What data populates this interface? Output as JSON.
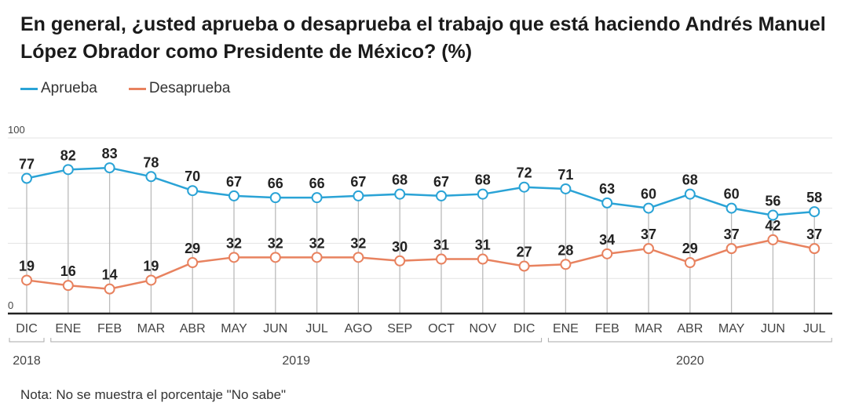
{
  "chart_data": {
    "type": "line",
    "title": "En general, ¿usted aprueba o desaprueba el trabajo que está haciendo Andrés Manuel López Obrador como Presidente de México?  (%)",
    "categories": [
      "DIC",
      "ENE",
      "FEB",
      "MAR",
      "ABR",
      "MAY",
      "JUN",
      "JUL",
      "AGO",
      "SEP",
      "OCT",
      "NOV",
      "DIC",
      "ENE",
      "FEB",
      "MAR",
      "ABR",
      "MAY",
      "JUN",
      "JUL"
    ],
    "years": [
      {
        "label": "2018",
        "from": 0,
        "to": 0
      },
      {
        "label": "2019",
        "from": 1,
        "to": 12
      },
      {
        "label": "2020",
        "from": 13,
        "to": 19
      }
    ],
    "ylim": [
      0,
      100
    ],
    "yticks": [
      0,
      100
    ],
    "grid": [
      20,
      40,
      60,
      80,
      100
    ],
    "legend_placement": "top-left",
    "series": [
      {
        "name": "Aprueba",
        "color": "#2aa3d6",
        "values": [
          77,
          82,
          83,
          78,
          70,
          67,
          66,
          66,
          67,
          68,
          67,
          68,
          72,
          71,
          63,
          60,
          68,
          60,
          56,
          58
        ]
      },
      {
        "name": "Desaprueba",
        "color": "#e8825f",
        "values": [
          19,
          16,
          14,
          19,
          29,
          32,
          32,
          32,
          32,
          30,
          31,
          31,
          27,
          28,
          34,
          37,
          29,
          37,
          42,
          37
        ]
      }
    ],
    "note": "Nota: No se muestra el porcentaje \"No sabe\""
  }
}
